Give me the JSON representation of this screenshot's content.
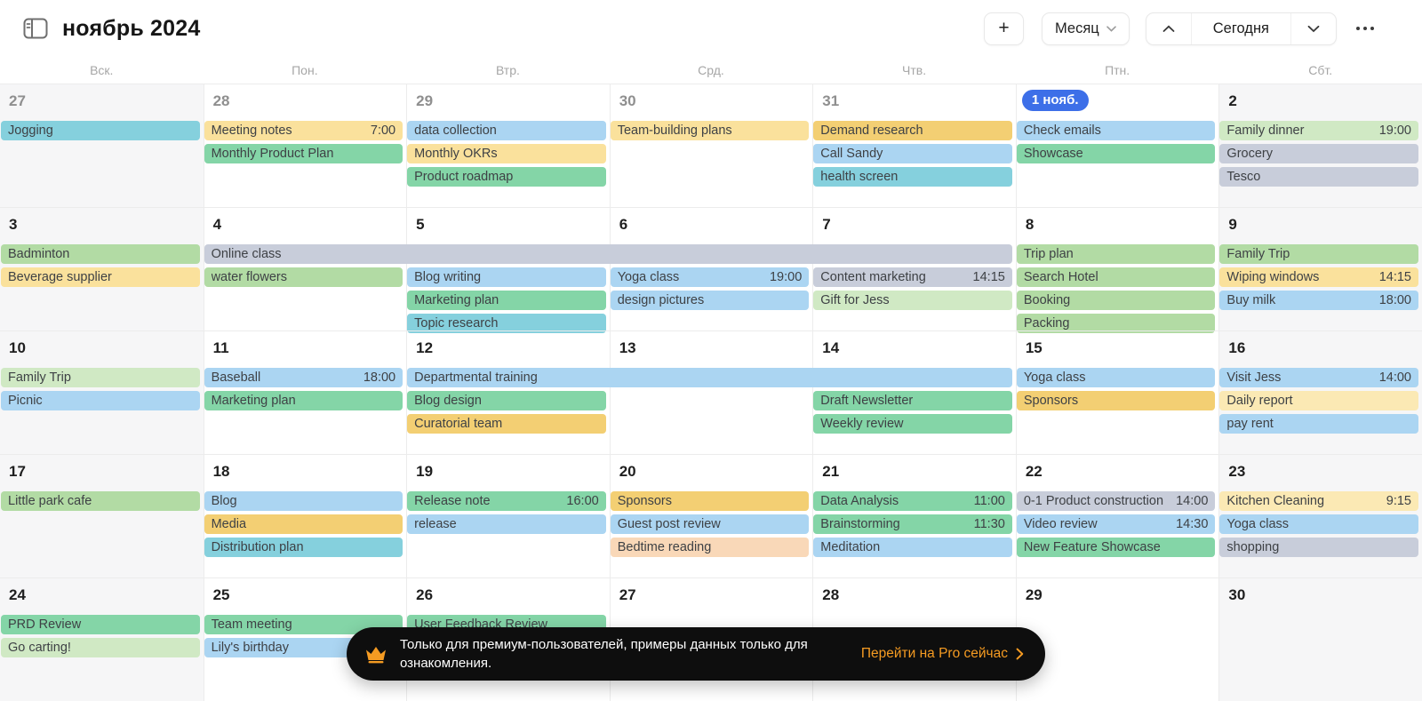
{
  "header": {
    "title": "ноябрь 2024",
    "add_button": "+",
    "view_button": "Месяц",
    "today_button": "Сегодня"
  },
  "weekday_headers": [
    "Вск.",
    "Пон.",
    "Втр.",
    "Срд.",
    "Чтв.",
    "Птн.",
    "Сбт."
  ],
  "colors": {
    "teal": "#85d0dd",
    "blue": "#abd5f2",
    "yellow": "#fae19c",
    "gold": "#f3cf73",
    "paleyellow": "#fbe9b4",
    "green": "#84d5a7",
    "lightgreen": "#b2dba4",
    "palegreen": "#d0e9c4",
    "gray": "#c8cdda",
    "peach": "#f9d8b8",
    "accent_badge": "#3d6fe8",
    "toast_accent": "#f59b22"
  },
  "weeks": [
    {
      "days": [
        {
          "label": "27",
          "muted": true
        },
        {
          "label": "28",
          "muted": true
        },
        {
          "label": "29",
          "muted": true
        },
        {
          "label": "30",
          "muted": true
        },
        {
          "label": "31",
          "muted": true
        },
        {
          "label": "1 нояб.",
          "badge": true
        },
        {
          "label": "2"
        }
      ],
      "events": [
        {
          "title": "Jogging",
          "col": 1,
          "span": 1,
          "slot": 1,
          "color": "teal"
        },
        {
          "title": "Meeting notes",
          "time": "7:00",
          "col": 2,
          "span": 1,
          "slot": 1,
          "color": "yellow"
        },
        {
          "title": "Monthly Product Plan",
          "col": 2,
          "span": 1,
          "slot": 2,
          "color": "green"
        },
        {
          "title": "data collection",
          "col": 3,
          "span": 1,
          "slot": 1,
          "color": "blue"
        },
        {
          "title": "Monthly OKRs",
          "col": 3,
          "span": 1,
          "slot": 2,
          "color": "yellow"
        },
        {
          "title": "Product roadmap",
          "col": 3,
          "span": 1,
          "slot": 3,
          "color": "green"
        },
        {
          "title": "Team-building plans",
          "col": 4,
          "span": 1,
          "slot": 1,
          "color": "yellow"
        },
        {
          "title": "Demand research",
          "col": 5,
          "span": 1,
          "slot": 1,
          "color": "gold"
        },
        {
          "title": "Call Sandy",
          "col": 5,
          "span": 1,
          "slot": 2,
          "color": "blue"
        },
        {
          "title": "health screen",
          "col": 5,
          "span": 1,
          "slot": 3,
          "color": "teal"
        },
        {
          "title": "Check emails",
          "col": 6,
          "span": 1,
          "slot": 1,
          "color": "blue"
        },
        {
          "title": "Showcase",
          "col": 6,
          "span": 1,
          "slot": 2,
          "color": "green"
        },
        {
          "title": "Family dinner",
          "time": "19:00",
          "col": 7,
          "span": 1,
          "slot": 1,
          "color": "palegreen"
        },
        {
          "title": "Grocery",
          "col": 7,
          "span": 1,
          "slot": 2,
          "color": "gray"
        },
        {
          "title": "Tesco",
          "col": 7,
          "span": 1,
          "slot": 3,
          "color": "gray"
        }
      ]
    },
    {
      "days": [
        {
          "label": "3"
        },
        {
          "label": "4"
        },
        {
          "label": "5"
        },
        {
          "label": "6"
        },
        {
          "label": "7"
        },
        {
          "label": "8"
        },
        {
          "label": "9"
        }
      ],
      "events": [
        {
          "title": "Badminton",
          "col": 1,
          "span": 1,
          "slot": 1,
          "color": "lightgreen"
        },
        {
          "title": "Beverage supplier",
          "col": 1,
          "span": 1,
          "slot": 2,
          "color": "yellow"
        },
        {
          "title": "Online class",
          "col": 2,
          "span": 4,
          "slot": 1,
          "color": "gray"
        },
        {
          "title": "water flowers",
          "col": 2,
          "span": 1,
          "slot": 2,
          "color": "lightgreen"
        },
        {
          "title": "Blog writing",
          "col": 3,
          "span": 1,
          "slot": 2,
          "color": "blue"
        },
        {
          "title": "Marketing plan",
          "col": 3,
          "span": 1,
          "slot": 3,
          "color": "green"
        },
        {
          "title": "Topic research",
          "col": 3,
          "span": 1,
          "slot": 4,
          "color": "teal"
        },
        {
          "title": "Yoga class",
          "time": "19:00",
          "col": 4,
          "span": 1,
          "slot": 2,
          "color": "blue"
        },
        {
          "title": "design pictures",
          "col": 4,
          "span": 1,
          "slot": 3,
          "color": "blue"
        },
        {
          "title": "Content marketing",
          "time": "14:15",
          "col": 5,
          "span": 1,
          "slot": 2,
          "color": "gray"
        },
        {
          "title": "Gift for Jess",
          "col": 5,
          "span": 1,
          "slot": 3,
          "color": "palegreen"
        },
        {
          "title": "Trip plan",
          "col": 6,
          "span": 1,
          "slot": 1,
          "color": "lightgreen"
        },
        {
          "title": "Search Hotel",
          "col": 6,
          "span": 1,
          "slot": 2,
          "color": "lightgreen"
        },
        {
          "title": "Booking",
          "col": 6,
          "span": 1,
          "slot": 3,
          "color": "lightgreen"
        },
        {
          "title": "Packing",
          "col": 6,
          "span": 1,
          "slot": 4,
          "color": "lightgreen"
        },
        {
          "title": "Family Trip",
          "col": 7,
          "span": 1,
          "slot": 1,
          "color": "lightgreen"
        },
        {
          "title": "Wiping windows",
          "time": "14:15",
          "col": 7,
          "span": 1,
          "slot": 2,
          "color": "yellow"
        },
        {
          "title": "Buy milk",
          "time": "18:00",
          "col": 7,
          "span": 1,
          "slot": 3,
          "color": "blue"
        }
      ]
    },
    {
      "days": [
        {
          "label": "10"
        },
        {
          "label": "11"
        },
        {
          "label": "12"
        },
        {
          "label": "13"
        },
        {
          "label": "14"
        },
        {
          "label": "15"
        },
        {
          "label": "16"
        }
      ],
      "events": [
        {
          "title": "Family Trip",
          "col": 1,
          "span": 1,
          "slot": 1,
          "color": "palegreen"
        },
        {
          "title": "Picnic",
          "col": 1,
          "span": 1,
          "slot": 2,
          "color": "blue"
        },
        {
          "title": "Baseball",
          "time": "18:00",
          "col": 2,
          "span": 1,
          "slot": 1,
          "color": "blue"
        },
        {
          "title": "Marketing plan",
          "col": 2,
          "span": 1,
          "slot": 2,
          "color": "green"
        },
        {
          "title": "Departmental training",
          "col": 3,
          "span": 3,
          "slot": 1,
          "color": "blue"
        },
        {
          "title": "Blog design",
          "col": 3,
          "span": 1,
          "slot": 2,
          "color": "green"
        },
        {
          "title": "Curatorial team",
          "col": 3,
          "span": 1,
          "slot": 3,
          "color": "gold"
        },
        {
          "title": "Draft Newsletter",
          "col": 5,
          "span": 1,
          "slot": 2,
          "color": "green"
        },
        {
          "title": "Weekly review",
          "col": 5,
          "span": 1,
          "slot": 3,
          "color": "green"
        },
        {
          "title": "Yoga class",
          "col": 6,
          "span": 1,
          "slot": 1,
          "color": "blue"
        },
        {
          "title": "Sponsors",
          "col": 6,
          "span": 1,
          "slot": 2,
          "color": "gold"
        },
        {
          "title": "Visit Jess",
          "time": "14:00",
          "col": 7,
          "span": 1,
          "slot": 1,
          "color": "blue"
        },
        {
          "title": "Daily report",
          "col": 7,
          "span": 1,
          "slot": 2,
          "color": "paleyellow"
        },
        {
          "title": "pay rent",
          "col": 7,
          "span": 1,
          "slot": 3,
          "color": "blue"
        }
      ]
    },
    {
      "days": [
        {
          "label": "17"
        },
        {
          "label": "18"
        },
        {
          "label": "19"
        },
        {
          "label": "20"
        },
        {
          "label": "21"
        },
        {
          "label": "22"
        },
        {
          "label": "23"
        }
      ],
      "events": [
        {
          "title": "Little park cafe",
          "col": 1,
          "span": 1,
          "slot": 1,
          "color": "lightgreen"
        },
        {
          "title": "Blog",
          "col": 2,
          "span": 1,
          "slot": 1,
          "color": "blue"
        },
        {
          "title": "Media",
          "col": 2,
          "span": 1,
          "slot": 2,
          "color": "gold"
        },
        {
          "title": "Distribution plan",
          "col": 2,
          "span": 1,
          "slot": 3,
          "color": "teal"
        },
        {
          "title": "Release note",
          "time": "16:00",
          "col": 3,
          "span": 1,
          "slot": 1,
          "color": "green"
        },
        {
          "title": "release",
          "col": 3,
          "span": 1,
          "slot": 2,
          "color": "blue"
        },
        {
          "title": "Sponsors",
          "col": 4,
          "span": 1,
          "slot": 1,
          "color": "gold"
        },
        {
          "title": "Guest post review",
          "col": 4,
          "span": 1,
          "slot": 2,
          "color": "blue"
        },
        {
          "title": "Bedtime reading",
          "col": 4,
          "span": 1,
          "slot": 3,
          "color": "peach"
        },
        {
          "title": "Data Analysis",
          "time": "11:00",
          "col": 5,
          "span": 1,
          "slot": 1,
          "color": "green"
        },
        {
          "title": "Brainstorming",
          "time": "11:30",
          "col": 5,
          "span": 1,
          "slot": 2,
          "color": "green"
        },
        {
          "title": "Meditation",
          "col": 5,
          "span": 1,
          "slot": 3,
          "color": "blue"
        },
        {
          "title": "0-1 Product construction",
          "time": "14:00",
          "col": 6,
          "span": 1,
          "slot": 1,
          "color": "gray"
        },
        {
          "title": "Video review",
          "time": "14:30",
          "col": 6,
          "span": 1,
          "slot": 2,
          "color": "blue"
        },
        {
          "title": "New Feature Showcase",
          "col": 6,
          "span": 1,
          "slot": 3,
          "color": "green"
        },
        {
          "title": "Kitchen Cleaning",
          "time": "9:15",
          "col": 7,
          "span": 1,
          "slot": 1,
          "color": "paleyellow"
        },
        {
          "title": "Yoga class",
          "col": 7,
          "span": 1,
          "slot": 2,
          "color": "blue"
        },
        {
          "title": "shopping",
          "col": 7,
          "span": 1,
          "slot": 3,
          "color": "gray"
        }
      ]
    },
    {
      "days": [
        {
          "label": "24"
        },
        {
          "label": "25"
        },
        {
          "label": "26"
        },
        {
          "label": "27"
        },
        {
          "label": "28"
        },
        {
          "label": "29"
        },
        {
          "label": "30"
        }
      ],
      "events": [
        {
          "title": "PRD Review",
          "col": 1,
          "span": 1,
          "slot": 1,
          "color": "green"
        },
        {
          "title": "Go carting!",
          "col": 1,
          "span": 1,
          "slot": 2,
          "color": "palegreen"
        },
        {
          "title": "Team meeting",
          "col": 2,
          "span": 1,
          "slot": 1,
          "color": "green"
        },
        {
          "title": "Lily's birthday",
          "col": 2,
          "span": 1,
          "slot": 2,
          "color": "blue"
        },
        {
          "title": "User Feedback Review",
          "col": 3,
          "span": 1,
          "slot": 1,
          "color": "green"
        }
      ]
    }
  ],
  "toast": {
    "message": "Только для премиум-пользователей, примеры данных только для ознакомления.",
    "cta": "Перейти на Pro сейчас"
  }
}
